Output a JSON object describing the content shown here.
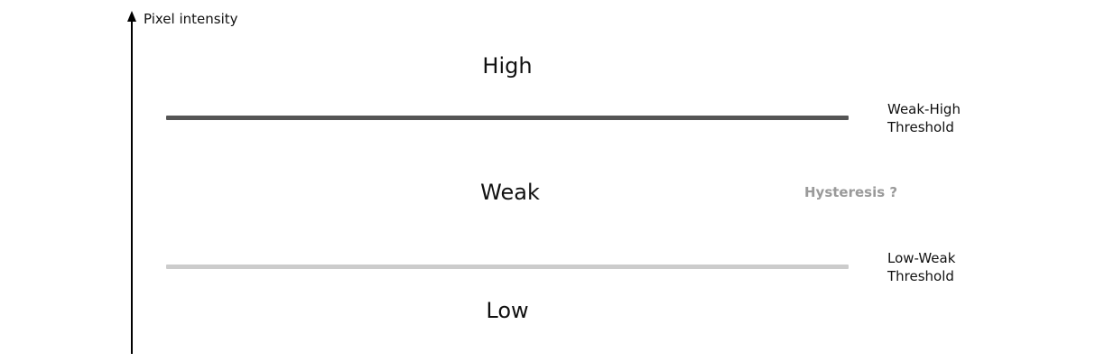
{
  "axis": {
    "label": "Pixel intensity",
    "color": "#000000"
  },
  "regions": {
    "high": "High",
    "weak": "Weak",
    "low": "Low"
  },
  "thresholds": {
    "weak_high": {
      "line1": "Weak-High",
      "line2": "Threshold",
      "color": "#555555"
    },
    "low_weak": {
      "line1": "Low-Weak",
      "line2": "Threshold",
      "color": "#cccccc"
    }
  },
  "annotation": {
    "text": "Hysteresis ?",
    "color": "#9a9a9a"
  }
}
